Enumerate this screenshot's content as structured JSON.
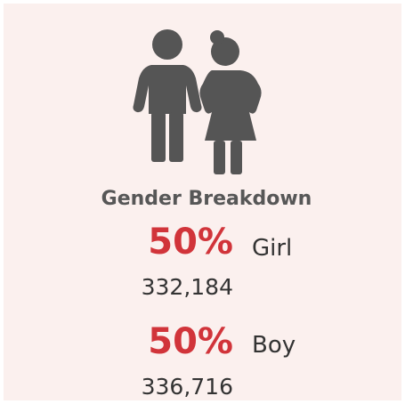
{
  "title": "Gender Breakdown",
  "items": [
    {
      "percent": "50%",
      "label": "Girl",
      "count": "332,184"
    },
    {
      "percent": "50%",
      "label": "Boy",
      "count": "336,716"
    }
  ]
}
